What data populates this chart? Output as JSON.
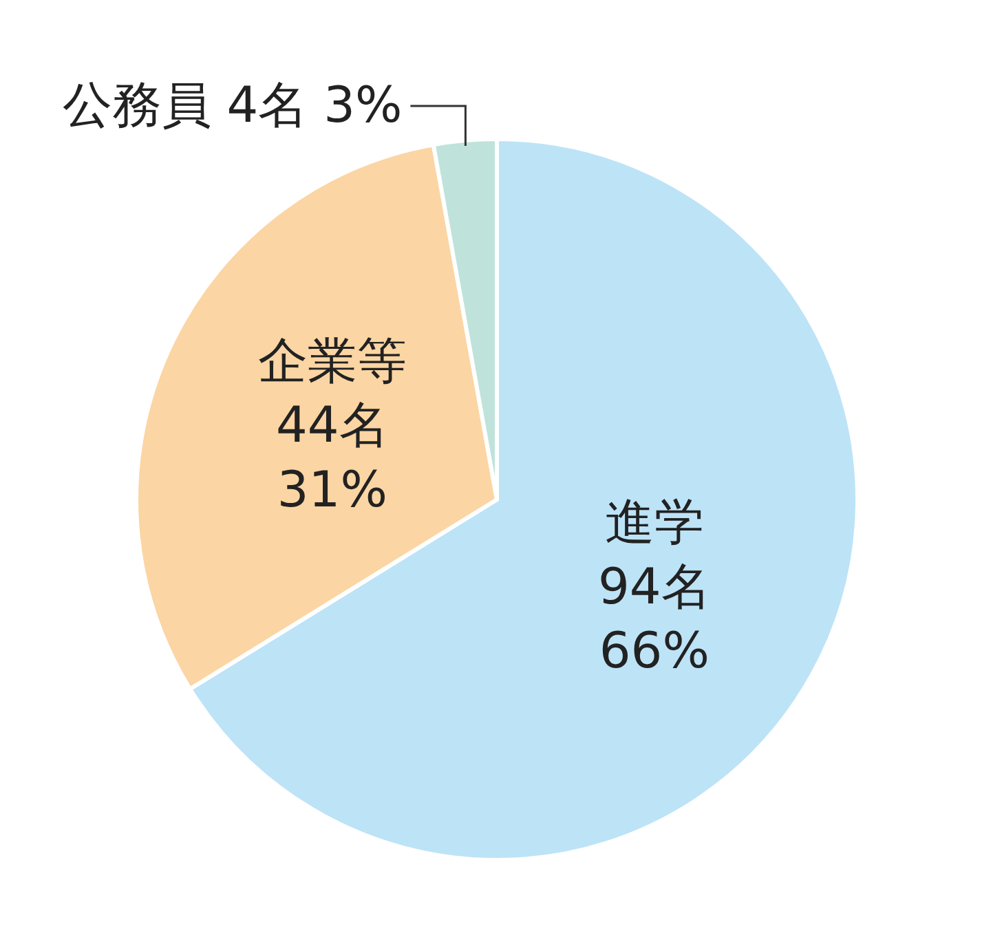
{
  "chart_data": {
    "type": "pie",
    "categories": [
      "進学",
      "企業等",
      "公務員"
    ],
    "values": [
      94,
      44,
      4
    ],
    "colors": [
      "#bde3f7",
      "#fbd5a3",
      "#bfe3da"
    ],
    "value_labels": [
      "94名\n66%",
      "44名\n31%",
      "4名\n3%"
    ]
  }
}
